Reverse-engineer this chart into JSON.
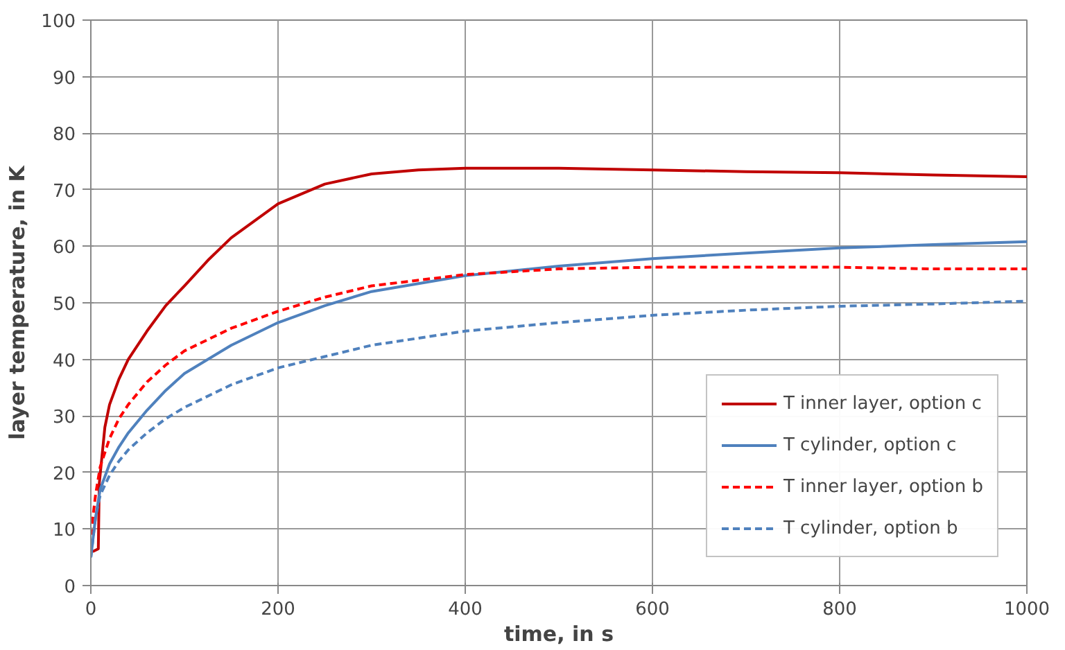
{
  "chart_data": {
    "type": "line",
    "xlabel": "time, in s",
    "ylabel": "layer temperature, in K",
    "xlim": [
      0,
      1000
    ],
    "xticks": [
      0,
      200,
      400,
      600,
      800,
      1000
    ],
    "ylim": [
      0,
      100
    ],
    "yticks": [
      0,
      10,
      20,
      30,
      40,
      50,
      60,
      70,
      80,
      90,
      100
    ],
    "grid": true,
    "legend": "bottom right",
    "marker": "none",
    "series": [
      {
        "name": "T inner layer, option c",
        "color": "#c00000",
        "line_style": "solid",
        "x": [
          2,
          8,
          9,
          15,
          20,
          30,
          40,
          60,
          80,
          100,
          125,
          150,
          200,
          250,
          300,
          350,
          400,
          500,
          600,
          700,
          800,
          900,
          1000
        ],
        "values": [
          6,
          6.5,
          18,
          28,
          32,
          36.5,
          40,
          45,
          49.5,
          53,
          57.5,
          61.5,
          67.5,
          71,
          72.8,
          73.5,
          73.8,
          73.8,
          73.5,
          73.2,
          73,
          72.6,
          72.3
        ]
      },
      {
        "name": "T cylinder, option c",
        "color": "#4f81bd",
        "line_style": "solid",
        "x": [
          0,
          5,
          10,
          20,
          30,
          40,
          60,
          80,
          100,
          150,
          200,
          250,
          300,
          400,
          500,
          600,
          700,
          800,
          900,
          1000
        ],
        "values": [
          5,
          12,
          17,
          21.5,
          24.5,
          27,
          31,
          34.5,
          37.5,
          42.5,
          46.5,
          49.5,
          52,
          54.8,
          56.5,
          57.8,
          58.8,
          59.7,
          60.3,
          60.8
        ]
      },
      {
        "name": "T inner layer, option b",
        "color": "#ff0000",
        "line_style": "dashed",
        "x": [
          0,
          5,
          10,
          20,
          30,
          40,
          60,
          80,
          100,
          150,
          200,
          250,
          300,
          400,
          500,
          600,
          700,
          800,
          900,
          1000
        ],
        "values": [
          9,
          16,
          21,
          26,
          29.5,
          32,
          36,
          39,
          41.5,
          45.5,
          48.5,
          51,
          53,
          55,
          56,
          56.3,
          56.3,
          56.3,
          56,
          56
        ]
      },
      {
        "name": "T cylinder, option b",
        "color": "#4f81bd",
        "line_style": "dashed",
        "x": [
          0,
          5,
          10,
          20,
          30,
          40,
          60,
          80,
          100,
          150,
          200,
          250,
          300,
          400,
          500,
          600,
          700,
          800,
          900,
          1000
        ],
        "values": [
          5,
          12,
          16,
          19.5,
          22,
          24,
          27,
          29.5,
          31.5,
          35.5,
          38.5,
          40.5,
          42.5,
          45,
          46.5,
          47.8,
          48.7,
          49.4,
          49.8,
          50.3
        ]
      }
    ]
  }
}
